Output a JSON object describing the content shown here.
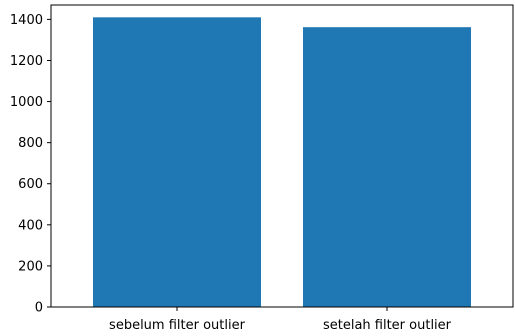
{
  "chart_data": {
    "type": "bar",
    "categories": [
      "sebelum filter outlier",
      "setelah filter outlier"
    ],
    "values": [
      1410,
      1362
    ],
    "ylim": [
      0,
      1470
    ],
    "yticks": [
      0,
      200,
      400,
      600,
      800,
      1000,
      1200,
      1400
    ],
    "ytick_labels": [
      "0",
      "200",
      "400",
      "600",
      "800",
      "1000",
      "1200",
      "1400"
    ],
    "grid": false,
    "bar_color": "#1f77b4"
  }
}
